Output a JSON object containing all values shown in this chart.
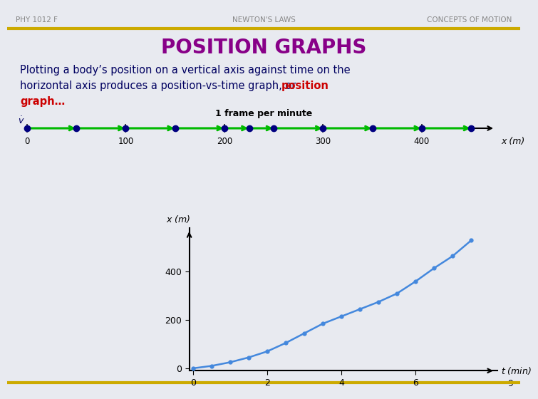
{
  "bg_color": "#e8eaf0",
  "header_left": "PHY 1012 F",
  "header_center": "NEWTON'S LAWS",
  "header_right": "CONCEPTS OF MOTION",
  "header_color": "#888888",
  "gold_line_color": "#ccaa00",
  "title": "POSITION GRAPHS",
  "title_color": "#880088",
  "body_line1": "Plotting a body’s position on a vertical axis against time on the",
  "body_line2a": "horizontal axis produces a position-vs-time graph, or ",
  "body_line2b": "position",
  "body_line3": "graph…",
  "body_color": "#000060",
  "red_color": "#cc0000",
  "frame_label": "1 frame per minute",
  "dot_positions_m": [
    0,
    50,
    100,
    150,
    200,
    225,
    250,
    300,
    350,
    400,
    450
  ],
  "timeline_dot_color": "#000080",
  "arrow_color": "#00bb00",
  "axis_label_x": "x (m)",
  "axis_ticks_x": [
    0,
    100,
    200,
    300,
    400
  ],
  "x_max_val": 460,
  "graph_t": [
    0,
    0.5,
    1.0,
    1.5,
    2.0,
    2.5,
    3.0,
    3.5,
    4.0,
    4.5,
    5.0,
    5.5,
    6.0,
    6.5,
    7.0,
    7.5
  ],
  "graph_x": [
    0,
    10,
    25,
    45,
    70,
    105,
    145,
    185,
    215,
    245,
    275,
    310,
    360,
    415,
    465,
    530
  ],
  "graph_line_color": "#4488dd",
  "graph_dot_color": "#4488dd",
  "graph_xticks": [
    0,
    2,
    4,
    6
  ],
  "graph_yticks": [
    0,
    200,
    400
  ],
  "page_number": "9"
}
